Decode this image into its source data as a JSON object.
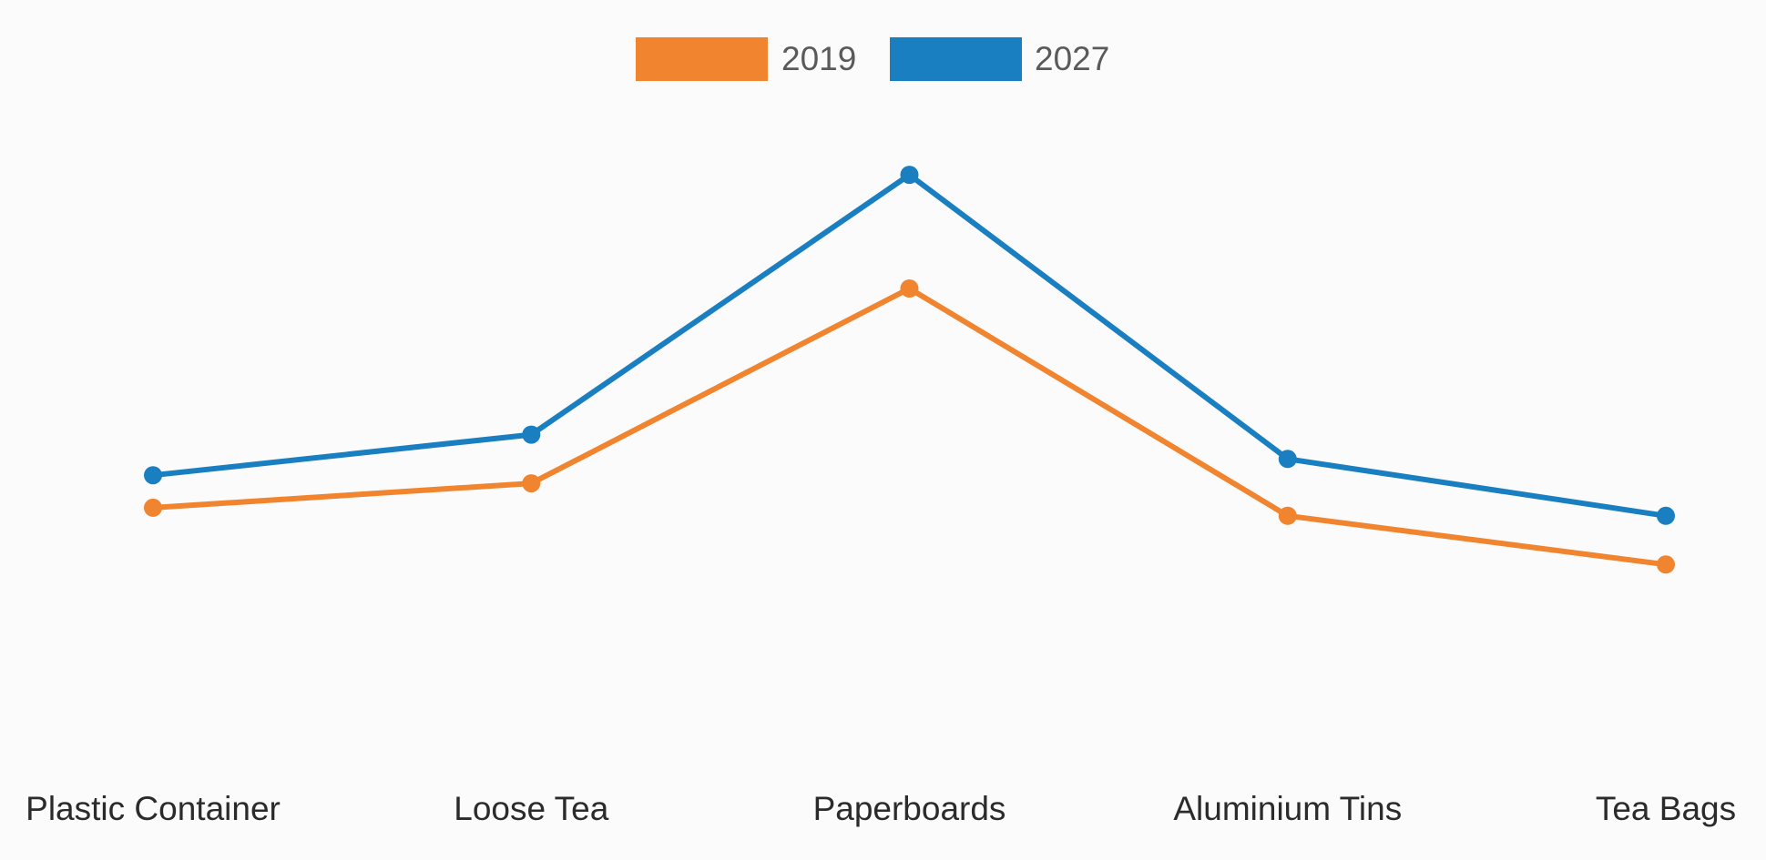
{
  "chart_data": {
    "type": "line",
    "title": "",
    "xlabel": "",
    "ylabel": "",
    "categories": [
      "Plastic Container",
      "Loose Tea",
      "Paperboards",
      "Aluminium Tins",
      "Tea Bags"
    ],
    "series": [
      {
        "name": "2019",
        "color": "#f0842f",
        "values": [
          36,
          39,
          63,
          35,
          29
        ]
      },
      {
        "name": "2027",
        "color": "#1a7fc1",
        "values": [
          40,
          45,
          77,
          42,
          35
        ]
      }
    ],
    "ylim": [
      0,
      88
    ],
    "grid": false,
    "legend": "top-center",
    "axes_visible": false
  }
}
